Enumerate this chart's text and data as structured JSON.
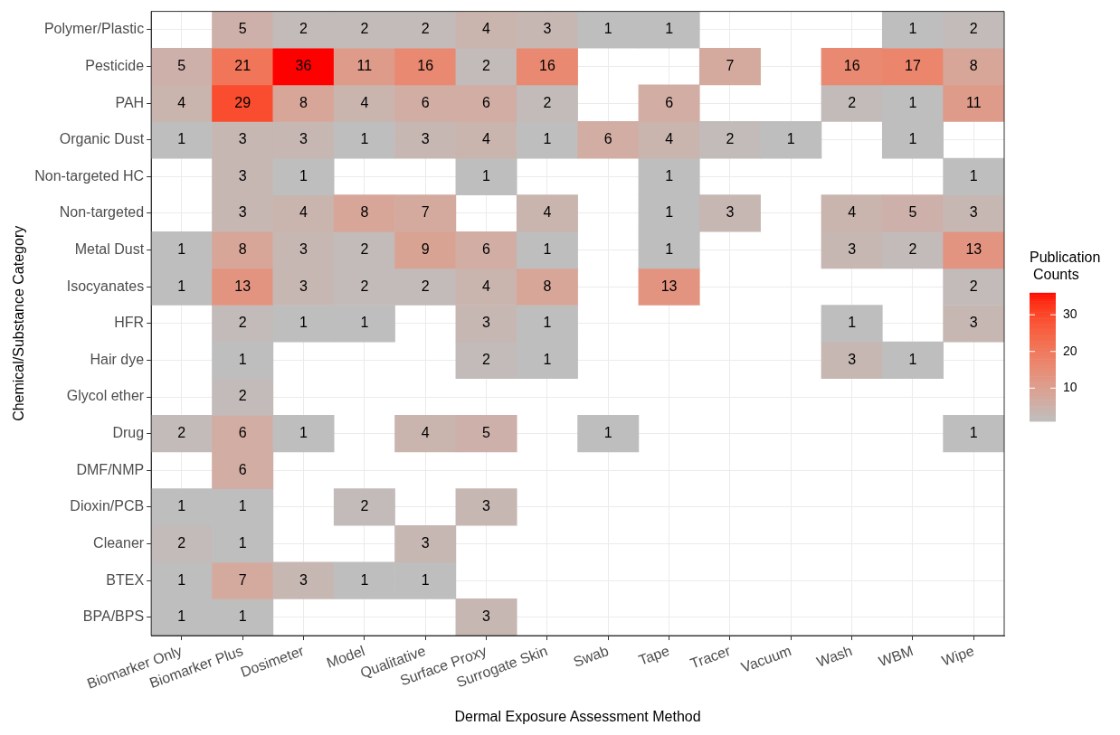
{
  "chart_data": {
    "type": "heatmap",
    "xlabel": "Dermal Exposure Assessment Method",
    "ylabel": "Chemical/Substance Category",
    "legend_title": "Publication\nCounts",
    "categories": [
      "Biomarker Only",
      "Biomarker Plus",
      "Dosimeter",
      "Model",
      "Qualitative",
      "Surface Proxy",
      "Surrogate Skin",
      "Swab",
      "Tape",
      "Tracer",
      "Vacuum",
      "Wash",
      "WBM",
      "Wipe"
    ],
    "y_categories": [
      "Polymer/Plastic",
      "Pesticide",
      "PAH",
      "Organic Dust",
      "Non-targeted HC",
      "Non-targeted",
      "Metal Dust",
      "Isocyanates",
      "HFR",
      "Hair dye",
      "Glycol ether",
      "Drug",
      "DMF/NMP",
      "Dioxin/PCB",
      "Cleaner",
      "BTEX",
      "BPA/BPS"
    ],
    "cells": [
      [
        null,
        5,
        2,
        2,
        2,
        4,
        3,
        1,
        1,
        null,
        null,
        null,
        1,
        2
      ],
      [
        5,
        21,
        36,
        11,
        16,
        2,
        16,
        null,
        null,
        7,
        null,
        16,
        17,
        8
      ],
      [
        4,
        29,
        8,
        4,
        6,
        6,
        2,
        null,
        6,
        null,
        null,
        2,
        1,
        11
      ],
      [
        1,
        3,
        3,
        1,
        3,
        4,
        1,
        6,
        4,
        2,
        1,
        null,
        1,
        null
      ],
      [
        null,
        3,
        1,
        null,
        null,
        1,
        null,
        null,
        1,
        null,
        null,
        null,
        null,
        1
      ],
      [
        null,
        3,
        4,
        8,
        7,
        null,
        4,
        null,
        1,
        3,
        null,
        4,
        5,
        3
      ],
      [
        1,
        8,
        3,
        2,
        9,
        6,
        1,
        null,
        1,
        null,
        null,
        3,
        2,
        13
      ],
      [
        1,
        13,
        3,
        2,
        2,
        4,
        8,
        null,
        13,
        null,
        null,
        null,
        null,
        2
      ],
      [
        null,
        2,
        1,
        1,
        null,
        3,
        1,
        null,
        null,
        null,
        null,
        1,
        null,
        3
      ],
      [
        null,
        1,
        null,
        null,
        null,
        2,
        1,
        null,
        null,
        null,
        null,
        3,
        1,
        null
      ],
      [
        null,
        2,
        null,
        null,
        null,
        null,
        null,
        null,
        null,
        null,
        null,
        null,
        null,
        null
      ],
      [
        2,
        6,
        1,
        null,
        4,
        5,
        null,
        1,
        null,
        null,
        null,
        null,
        null,
        1
      ],
      [
        null,
        6,
        null,
        null,
        null,
        null,
        null,
        null,
        null,
        null,
        null,
        null,
        null,
        null
      ],
      [
        1,
        1,
        null,
        2,
        null,
        3,
        null,
        null,
        null,
        null,
        null,
        null,
        null,
        null
      ],
      [
        2,
        1,
        null,
        null,
        3,
        null,
        null,
        null,
        null,
        null,
        null,
        null,
        null,
        null
      ],
      [
        1,
        7,
        3,
        1,
        1,
        null,
        null,
        null,
        null,
        null,
        null,
        null,
        null,
        null
      ],
      [
        1,
        1,
        null,
        null,
        null,
        3,
        null,
        null,
        null,
        null,
        null,
        null,
        null,
        null
      ]
    ],
    "colors": [
      "#bebebe",
      "#ff0000"
    ],
    "clim": [
      1,
      36
    ],
    "cticks": [
      10,
      20,
      30
    ],
    "data_labels": true,
    "grid": true
  }
}
